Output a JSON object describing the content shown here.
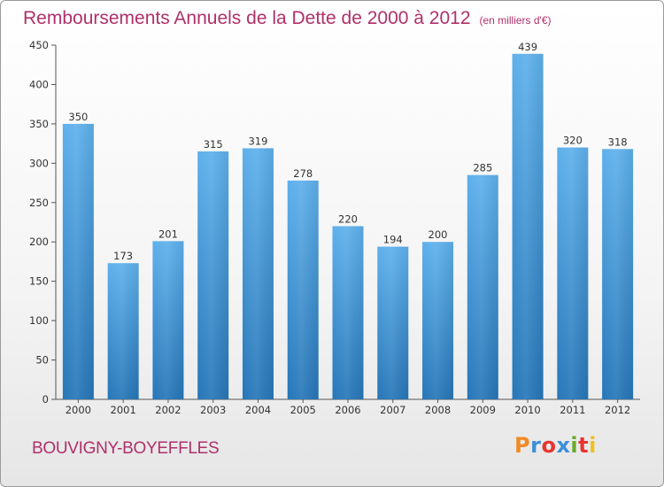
{
  "title": "Remboursements Annuels de la Dette de 2000 à 2012",
  "subtitle": "(en milliers d'€)",
  "commune": "BOUVIGNY-BOYEFFLES",
  "logo": {
    "letters": [
      "P",
      "r",
      "o",
      "x",
      "i",
      "t",
      "i"
    ],
    "colors": [
      "#f08a24",
      "#3d8fd6",
      "#e8342f",
      "#3d8fd6",
      "#6aaa2c",
      "#e8342f",
      "#f0c020"
    ]
  },
  "colors": {
    "title": "#b0306a",
    "bar_light": "#5eb0ec",
    "bar_dark": "#2676b8"
  },
  "chart_data": {
    "type": "bar",
    "title": "Remboursements Annuels de la Dette de 2000 à 2012",
    "subtitle": "(en milliers d'€)",
    "xlabel": "",
    "ylabel": "",
    "categories": [
      "2000",
      "2001",
      "2002",
      "2003",
      "2004",
      "2005",
      "2006",
      "2007",
      "2008",
      "2009",
      "2010",
      "2011",
      "2012"
    ],
    "values": [
      350,
      173,
      201,
      315,
      319,
      278,
      220,
      194,
      200,
      285,
      439,
      320,
      318
    ],
    "ylim": [
      0,
      450
    ],
    "yticks": [
      0,
      50,
      100,
      150,
      200,
      250,
      300,
      350,
      400,
      450
    ],
    "grid": false,
    "legend": "none"
  }
}
